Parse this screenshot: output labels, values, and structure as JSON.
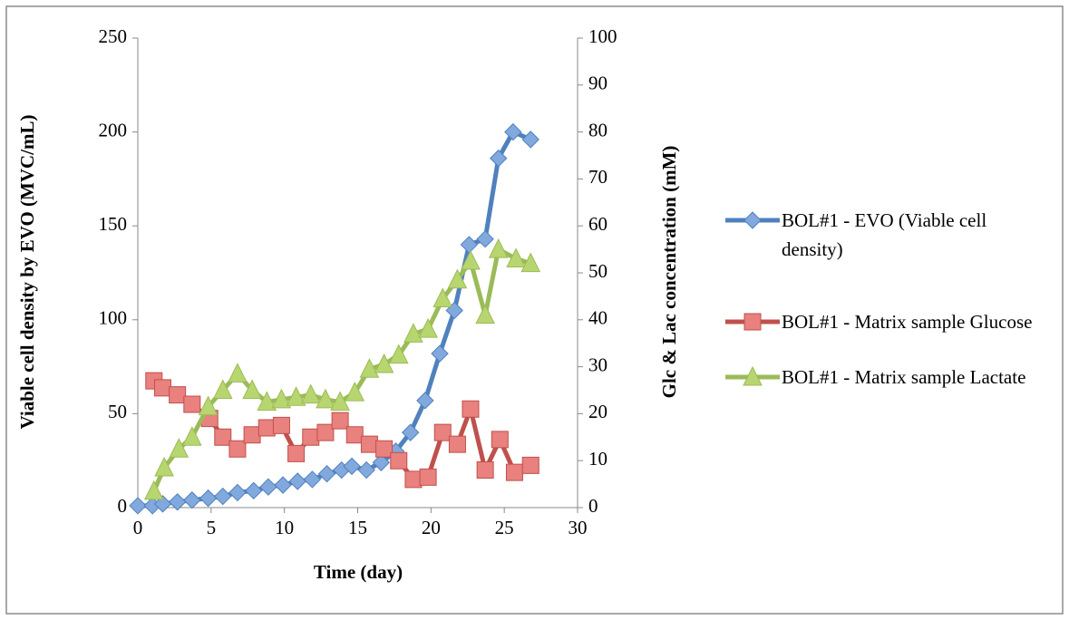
{
  "chart_data": {
    "type": "line",
    "xlabel": "Time (day)",
    "ylabel": "Viable cell density by EVO (MVC/mL)",
    "y2label": "Glc & Lac concentration (mM)",
    "xlim": [
      0,
      30
    ],
    "xticks": [
      0,
      5,
      10,
      15,
      20,
      25,
      30
    ],
    "ylim": [
      0,
      250
    ],
    "yticks": [
      0,
      50,
      100,
      150,
      200,
      250
    ],
    "y2lim": [
      0,
      100
    ],
    "y2ticks": [
      0,
      10,
      20,
      30,
      40,
      50,
      60,
      70,
      80,
      90,
      100
    ],
    "grid": false,
    "legend": "right",
    "series": [
      {
        "name": "BOL#1 - EVO (Viable cell density)",
        "color": "#4f81bd",
        "marker": "diamond",
        "x": [
          0,
          1,
          1.7,
          2.7,
          3.7,
          4.8,
          5.8,
          6.8,
          7.9,
          8.9,
          9.9,
          10.9,
          11.9,
          12.9,
          13.9,
          14.6,
          15.6,
          16.6,
          17.6,
          18.6,
          19.6,
          20.6,
          21.6,
          22.6,
          23.7,
          24.6,
          25.6,
          26.8
        ],
        "values": [
          1,
          1,
          2,
          3,
          4,
          5,
          6,
          8,
          9,
          11,
          12,
          14,
          15,
          18,
          20,
          22,
          20,
          24,
          30,
          40,
          57,
          82,
          105,
          140,
          143,
          186,
          200,
          196
        ]
      },
      {
        "name": "BOL#1 - Matrix sample Glucose",
        "color": "#c0504d",
        "marker": "square",
        "axis": "y2",
        "x": [
          1.1,
          1.7,
          2.7,
          3.7,
          4.9,
          5.8,
          6.8,
          7.8,
          8.8,
          9.8,
          10.8,
          11.8,
          12.8,
          13.8,
          14.8,
          15.8,
          16.8,
          17.8,
          18.8,
          19.8,
          20.8,
          21.8,
          22.7,
          23.7,
          24.7,
          25.7,
          26.8
        ],
        "values": [
          27,
          25.5,
          24,
          22,
          19,
          15,
          12.5,
          15.5,
          17,
          17.5,
          11.5,
          15,
          16,
          18.5,
          15.5,
          13.5,
          12.5,
          10,
          6,
          6.5,
          16,
          13.5,
          21,
          8,
          14.5,
          7.5,
          9
        ]
      },
      {
        "name": "BOL#1 - Matrix sample Lactate",
        "color": "#9bbb59",
        "marker": "triangle",
        "axis": "y2",
        "x": [
          1.1,
          1.8,
          2.8,
          3.7,
          4.8,
          5.8,
          6.8,
          7.8,
          8.8,
          9.8,
          10.8,
          11.8,
          12.8,
          13.8,
          14.8,
          15.8,
          16.8,
          17.8,
          18.8,
          19.8,
          20.8,
          21.8,
          22.7,
          23.7,
          24.6,
          25.8,
          26.8
        ],
        "values": [
          3.5,
          8.5,
          12.5,
          15,
          21.5,
          25,
          28.5,
          25,
          22.5,
          23,
          23.5,
          24,
          23,
          22.5,
          24.5,
          29.5,
          30.5,
          32.5,
          37,
          38,
          44.5,
          48.5,
          52.5,
          41,
          55,
          53,
          52
        ]
      }
    ]
  }
}
